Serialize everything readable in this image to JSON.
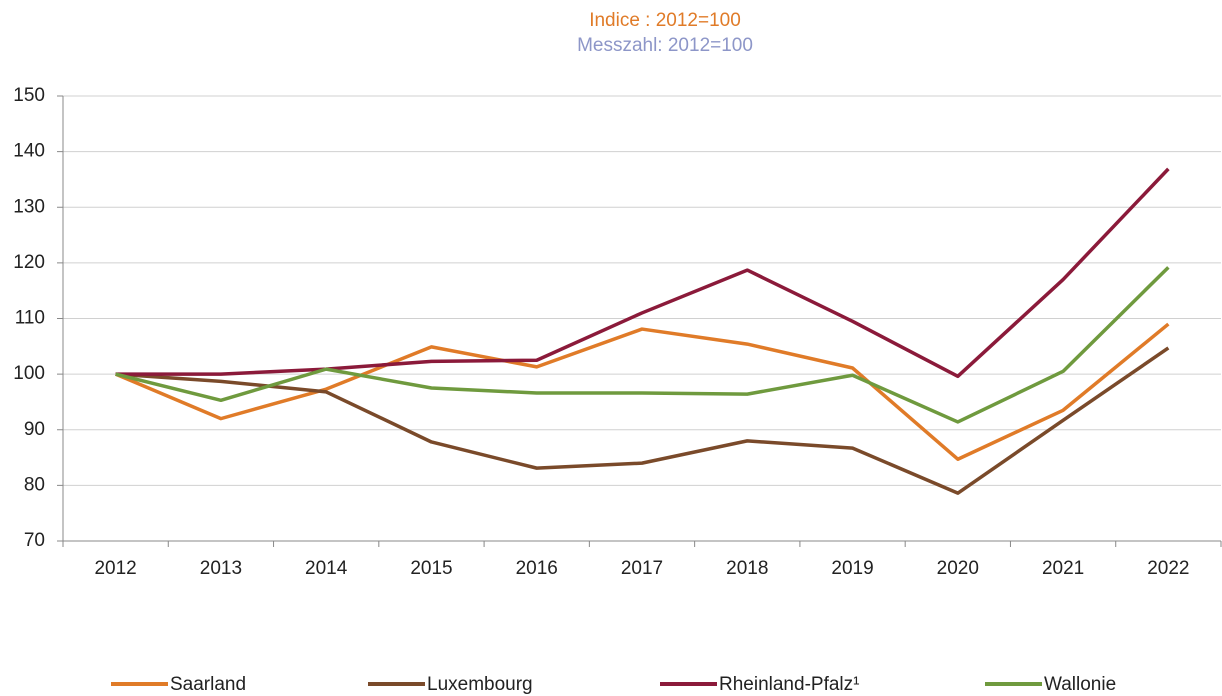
{
  "chart_data": {
    "type": "line",
    "title": "Indice : 2012=100",
    "subtitle": "Messzahl: 2012=100",
    "title_color": "#e07b28",
    "subtitle_color": "#8d96c8",
    "categories": [
      "2012",
      "2013",
      "2014",
      "2015",
      "2016",
      "2017",
      "2018",
      "2019",
      "2020",
      "2021",
      "2022"
    ],
    "series": [
      {
        "name": "Saarland",
        "color": "#e07b28",
        "values": [
          100,
          92,
          97.3,
          104.9,
          101.3,
          108.1,
          105.4,
          101.1,
          84.7,
          93.5,
          109
        ]
      },
      {
        "name": "Luxembourg",
        "color": "#7a4a2a",
        "values": [
          100,
          98.7,
          96.8,
          87.8,
          83.1,
          84,
          88,
          86.7,
          78.6,
          91.7,
          104.7
        ]
      },
      {
        "name": "Rheinland-Pfalz¹",
        "color": "#8b1a3a",
        "values": [
          100,
          100,
          100.9,
          102.3,
          102.5,
          111,
          118.7,
          109.5,
          99.6,
          117,
          136.9
        ]
      },
      {
        "name": "Wallonie",
        "color": "#6f9a3e",
        "values": [
          100,
          95.3,
          100.9,
          97.5,
          96.6,
          96.6,
          96.4,
          99.8,
          91.4,
          100.5,
          119.2
        ]
      }
    ],
    "ylim": [
      70,
      150
    ],
    "yticks": [
      70,
      80,
      90,
      100,
      110,
      120,
      130,
      140,
      150
    ],
    "grid": true,
    "legend": "bottom"
  }
}
